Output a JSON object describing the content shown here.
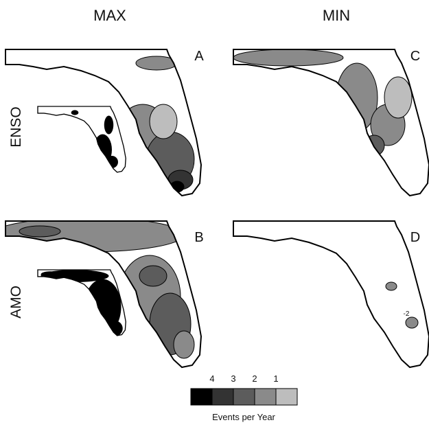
{
  "columns": [
    "MAX",
    "MIN"
  ],
  "rows": [
    "ENSO",
    "AMO"
  ],
  "panels": [
    {
      "letter": "A"
    },
    {
      "letter": "C"
    },
    {
      "letter": "B"
    },
    {
      "letter": "D",
      "contour_label": "-2"
    }
  ],
  "legend": {
    "ticks": [
      4,
      3,
      2,
      1
    ],
    "colors": [
      "#000000",
      "#333333",
      "#5c5c5c",
      "#8a8a8a",
      "#bdbdbd"
    ],
    "title": "Events per Year"
  }
}
